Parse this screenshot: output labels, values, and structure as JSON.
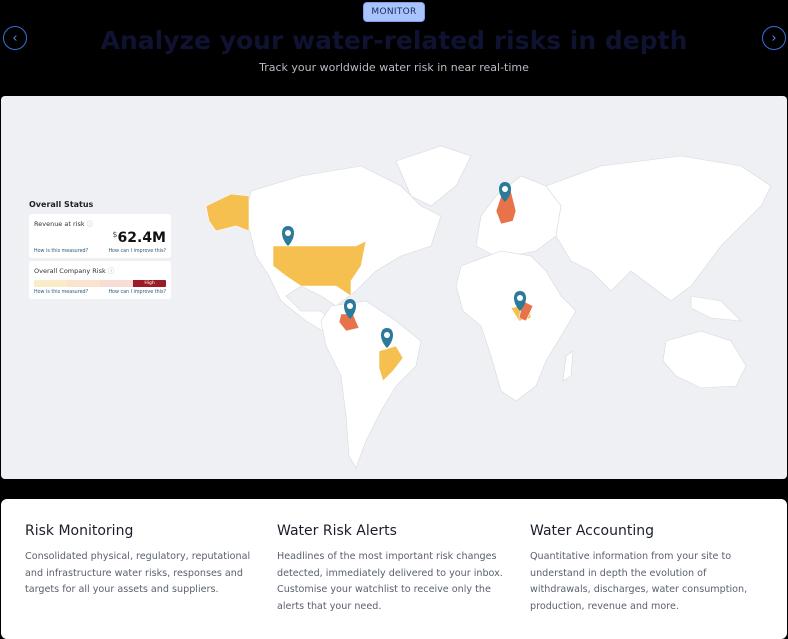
{
  "header": {
    "badge": "MONITOR",
    "title": "Analyze your water-related risks in depth",
    "subtitle": "Track your worldwide water risk in near real-time",
    "prev_icon": "chevron-left-icon",
    "next_icon": "chevron-right-icon"
  },
  "status": {
    "heading": "Overall Status",
    "revenue": {
      "label": "Revenue at risk",
      "currency": "$",
      "value": "62.4M",
      "link1": "How is this measured?",
      "link2": "How can I improve this?"
    },
    "company_risk": {
      "label": "Overall Company Risk",
      "level": "High",
      "link1": "How is this measured?",
      "link2": "How can I improve this?"
    }
  },
  "colors": {
    "high_risk": "#e8724a",
    "medium_risk": "#f5c04f",
    "pin": "#2b7a9a",
    "accent": "#a9c3ff"
  },
  "features": [
    {
      "title": "Risk Monitoring",
      "text": "Consolidated physical, regulatory, reputational and infrastructure water risks, responses and targets for all your assets and suppliers."
    },
    {
      "title": "Water Risk Alerts",
      "text": "Headlines of the most important risk changes detected, immediately delivered to your inbox. Customise your watchlist to receive only the alerts that your need."
    },
    {
      "title": "Water Accounting",
      "text": "Quantitative information from your site to understand in depth the evolution of withdrawals, discharges, water consumption, production, revenue and more."
    }
  ]
}
